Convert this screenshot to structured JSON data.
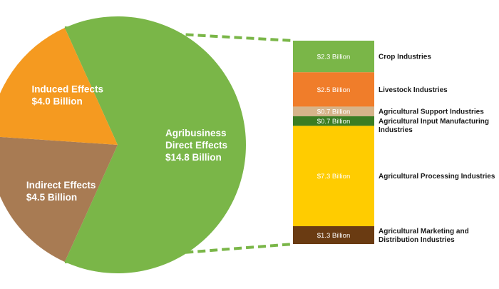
{
  "chart_data": [
    {
      "type": "pie",
      "slices": [
        {
          "name": "Agribusiness Direct Effects",
          "label_lines": [
            "Agribusiness",
            "Direct Effects",
            "$14.8 Billion"
          ],
          "value": 14.8,
          "color": "#7ab648"
        },
        {
          "name": "Indirect Effects",
          "label_lines": [
            "Indirect Effects",
            "$4.5 Billion"
          ],
          "value": 4.5,
          "color": "#a87b53"
        },
        {
          "name": "Induced Effects",
          "label_lines": [
            "Induced Effects",
            "$4.0 Billion"
          ],
          "value": 4.0,
          "color": "#f59a20"
        }
      ]
    },
    {
      "type": "bar",
      "stacked": true,
      "categories": [
        "Crop Industries",
        "Livestock Industries",
        "Agricultural Support Industries",
        "Agricultural Input Manufacturing Industries",
        "Agricultural Processing Industries",
        "Agricultural Marketing and Distribution Industries"
      ],
      "category_label_lines": [
        [
          "Crop Industries"
        ],
        [
          "Livestock Industries"
        ],
        [
          "Agricultural Support Industries"
        ],
        [
          "Agricultural Input Manufacturing",
          "Industries"
        ],
        [
          "Agricultural Processing Industries"
        ],
        [
          "Agricultural Marketing and",
          "Distribution Industries"
        ]
      ],
      "values": [
        2.3,
        2.5,
        0.7,
        0.7,
        7.3,
        1.3
      ],
      "value_labels": [
        "$2.3 Billion",
        "$2.5 Billion",
        "$0.7 Billion",
        "$0.7 Billion",
        "$7.3 Billion",
        "$1.3 Billion"
      ],
      "colors": [
        "#7ab648",
        "#f07d2a",
        "#d6b48a",
        "#3b7d23",
        "#ffcc00",
        "#6a3b12"
      ]
    }
  ]
}
